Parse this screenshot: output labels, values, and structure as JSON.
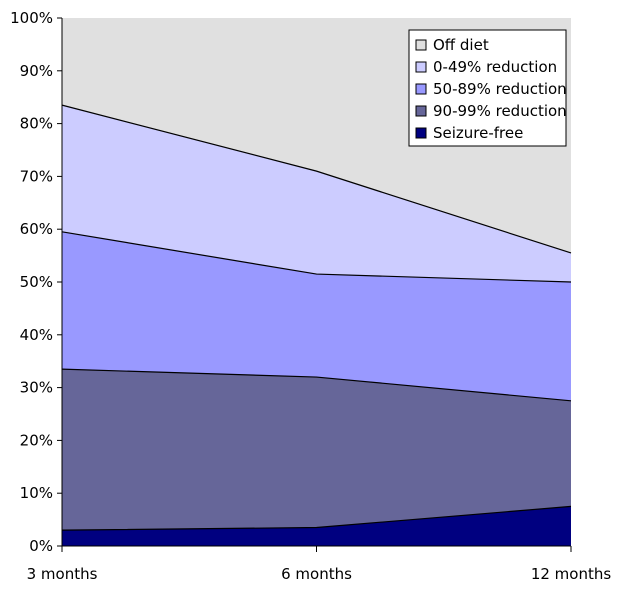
{
  "chart_data": {
    "type": "area",
    "stacked": true,
    "title": "",
    "xlabel": "",
    "ylabel": "",
    "x": [
      "3 months",
      "6 months",
      "12 months"
    ],
    "ylim": [
      0,
      100
    ],
    "y_ticks": [
      "0%",
      "10%",
      "20%",
      "30%",
      "40%",
      "50%",
      "60%",
      "70%",
      "80%",
      "90%",
      "100%"
    ],
    "grid": false,
    "legend_position": "top-right",
    "series": [
      {
        "name": "Seizure-free",
        "values": [
          3,
          3.5,
          7.5
        ],
        "color": "#000080"
      },
      {
        "name": "90-99% reduction",
        "values": [
          30.5,
          28.5,
          20
        ],
        "color": "#666699"
      },
      {
        "name": "50-89% reduction",
        "values": [
          26,
          19.5,
          22.5
        ],
        "color": "#9999ff"
      },
      {
        "name": "0-49% reduction",
        "values": [
          24,
          19.5,
          5.5
        ],
        "color": "#ccccff"
      },
      {
        "name": "Off diet",
        "values": [
          16.5,
          29,
          44.5
        ],
        "color": "#e0e0e0"
      }
    ],
    "legend_order": [
      "Off diet",
      "0-49% reduction",
      "50-89% reduction",
      "90-99% reduction",
      "Seizure-free"
    ]
  }
}
